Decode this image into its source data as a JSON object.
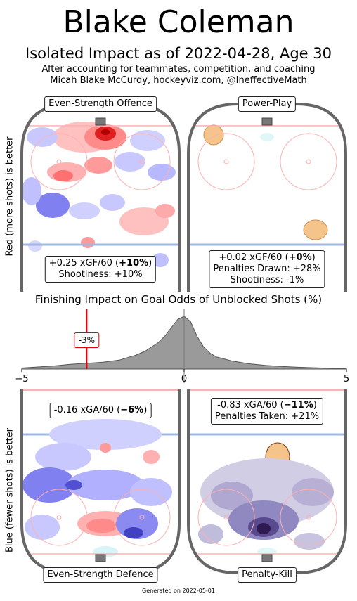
{
  "header": {
    "title": "Blake Coleman",
    "subtitle": "Isolated Impact as of 2022-04-28, Age 30",
    "note_line1": "After accounting for teammates, competition, and coaching",
    "note_line2": "Micah Blake McCurdy, hockeyviz.com, @IneffectiveMath"
  },
  "panels": {
    "ev_offence": {
      "label": "Even-Strength Offence",
      "stat_prefix": "+0.25 xGF/60 (",
      "stat_bold": "+10%",
      "stat_suffix": ")",
      "extra": "Shootiness: +10%"
    },
    "power_play": {
      "label": "Power-Play",
      "stat_prefix": "+0.02 xGF/60 (",
      "stat_bold": "+0%",
      "stat_suffix": ")",
      "extra1": "Penalties Drawn: +28%",
      "extra2": "Shootiness: -1%"
    },
    "ev_defence": {
      "label": "Even-Strength Defence",
      "stat_prefix": "-0.16 xGA/60 (",
      "stat_bold": "−6%",
      "stat_suffix": ")"
    },
    "penalty_kill": {
      "label": "Penalty-Kill",
      "stat_prefix": "-0.83 xGA/60 (",
      "stat_bold": "−11%",
      "stat_suffix": ")",
      "extra": "Penalties Taken: +21%"
    }
  },
  "ylabels": {
    "top": "Red (more shots) is better",
    "bottom": "Blue (fewer shots) is better"
  },
  "footer": "Generated on 2022-05-01",
  "colors": {
    "red": "#e8000b",
    "blue": "#3030d0",
    "purple": "#4a2a7a",
    "orange": "#f5c48a",
    "rink": "#666666"
  },
  "chart_data": {
    "type": "area",
    "title": "Finishing Impact on Goal Odds of Unblocked Shots (%)",
    "xlim": [
      -5,
      5
    ],
    "x_ticks": [
      -5,
      0,
      5
    ],
    "tick_labels": [
      "−5",
      "0",
      "5"
    ],
    "player_value": -3,
    "player_label": "-3%",
    "density_x": [
      -5,
      -4.5,
      -4,
      -3.5,
      -3,
      -2.5,
      -2,
      -1.5,
      -1.2,
      -1,
      -0.8,
      -0.6,
      -0.4,
      -0.2,
      0,
      0.2,
      0.4,
      0.6,
      0.8,
      1,
      1.5,
      2,
      2.5,
      3,
      3.5,
      4,
      4.5,
      5
    ],
    "density_y": [
      0.02,
      0.04,
      0.06,
      0.09,
      0.11,
      0.13,
      0.17,
      0.26,
      0.34,
      0.42,
      0.5,
      0.62,
      0.78,
      0.94,
      1.0,
      0.9,
      0.62,
      0.42,
      0.3,
      0.23,
      0.15,
      0.1,
      0.07,
      0.05,
      0.035,
      0.025,
      0.015,
      0.01
    ],
    "fill_color": "#888888"
  }
}
